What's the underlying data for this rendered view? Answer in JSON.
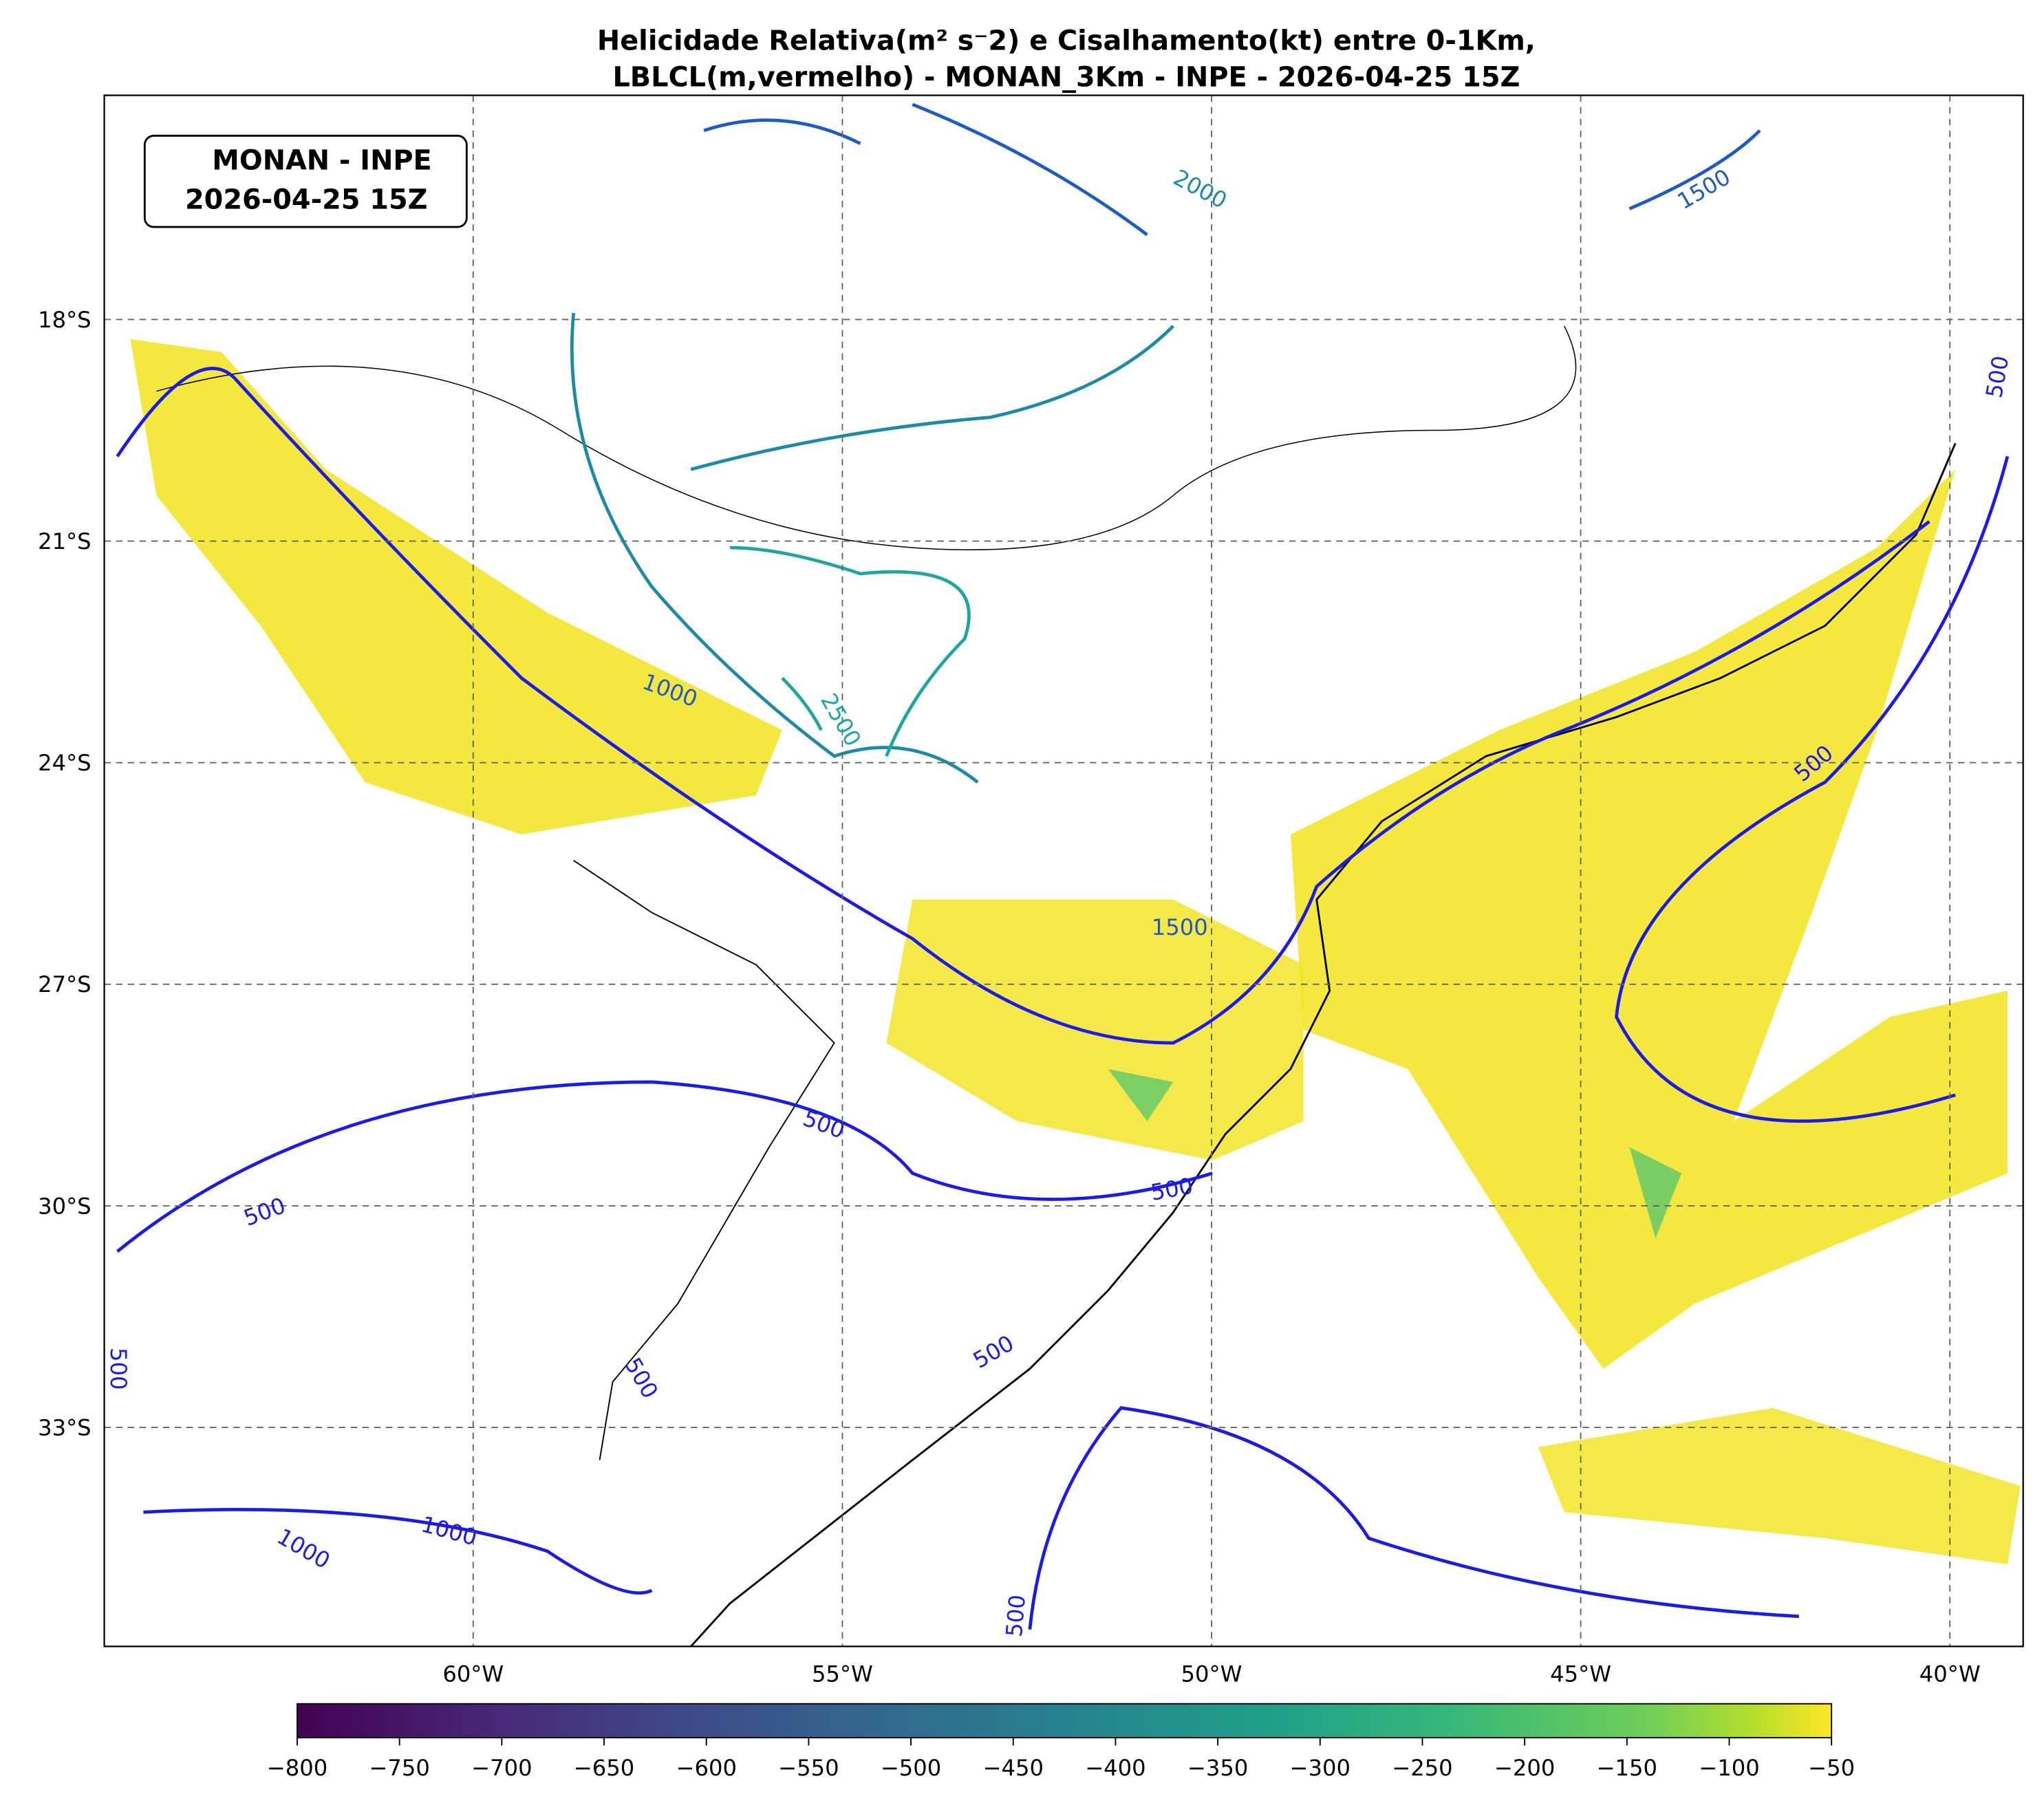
{
  "header": {
    "title_lines": [
      "Helicidade Relativa(m² s⁻2) e Cisalhamento(kt) entre 0-1Km,",
      "LBLCL(m,vermelho) - MONAN_3Km - INPE - 2026-04-25 15Z"
    ]
  },
  "info_box": {
    "lines": [
      "MONAN - INPE",
      "2026-04-25 15Z"
    ]
  },
  "map": {
    "lat_labels": [
      "18°S",
      "21°S",
      "24°S",
      "27°S",
      "30°S",
      "33°S"
    ],
    "lon_labels": [
      "60°W",
      "55°W",
      "50°W",
      "45°W",
      "40°W"
    ],
    "contour_labels": [
      "2000",
      "1500",
      "500",
      "1000",
      "2500",
      "500",
      "1500",
      "500",
      "500",
      "500",
      "500",
      "500",
      "500",
      "1000",
      "1000",
      "500"
    ]
  },
  "colorbar": {
    "lim": [
      -800,
      -50
    ],
    "ticks": [
      {
        "value": -800,
        "label": "−800"
      },
      {
        "value": -750,
        "label": "−750"
      },
      {
        "value": -700,
        "label": "−700"
      },
      {
        "value": -650,
        "label": "−650"
      },
      {
        "value": -600,
        "label": "−600"
      },
      {
        "value": -550,
        "label": "−550"
      },
      {
        "value": -500,
        "label": "−500"
      },
      {
        "value": -450,
        "label": "−450"
      },
      {
        "value": -400,
        "label": "−400"
      },
      {
        "value": -350,
        "label": "−350"
      },
      {
        "value": -300,
        "label": "−300"
      },
      {
        "value": -250,
        "label": "−250"
      },
      {
        "value": -200,
        "label": "−200"
      },
      {
        "value": -150,
        "label": "−150"
      },
      {
        "value": -100,
        "label": "−100"
      },
      {
        "value": -50,
        "label": "−50"
      }
    ]
  }
}
